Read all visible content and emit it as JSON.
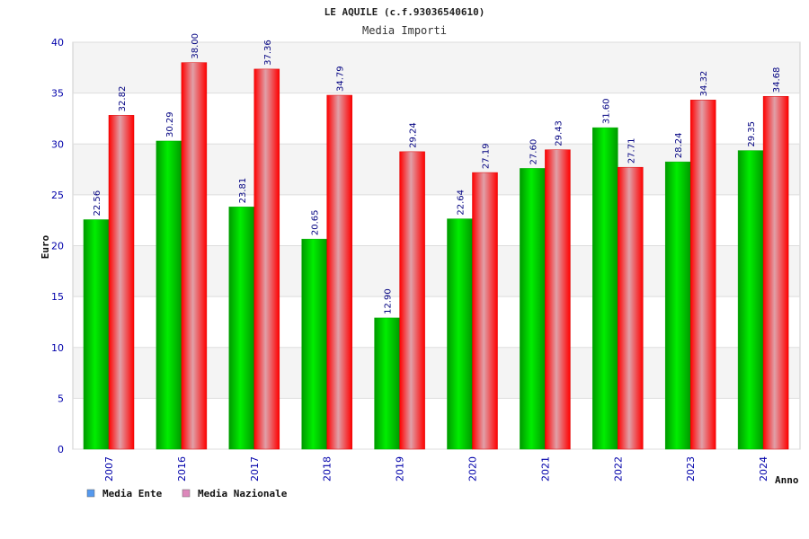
{
  "chart_data": {
    "type": "bar",
    "title": "LE AQUILE (c.f.93036540610)",
    "subtitle": "Media Importi",
    "xlabel": "Anno",
    "ylabel": "Euro",
    "ylim": [
      0,
      40
    ],
    "yticks": [
      "0",
      "5",
      "10",
      "15",
      "20",
      "25",
      "30",
      "35",
      "40"
    ],
    "categories": [
      "2007",
      "2016",
      "2017",
      "2018",
      "2019",
      "2020",
      "2021",
      "2022",
      "2023",
      "2024"
    ],
    "series": [
      {
        "name": "Media Ente",
        "values": [
          22.56,
          30.29,
          23.81,
          20.65,
          12.9,
          22.64,
          27.6,
          31.6,
          28.24,
          29.35
        ],
        "labels": [
          "22.56",
          "30.29",
          "23.81",
          "20.65",
          "12.90",
          "22.64",
          "27.60",
          "31.60",
          "28.24",
          "29.35"
        ],
        "bar_color": "#00cc00",
        "legend_color": "#5599ee"
      },
      {
        "name": "Media Nazionale",
        "values": [
          32.82,
          38.0,
          37.36,
          34.79,
          29.24,
          27.19,
          29.43,
          27.71,
          34.32,
          34.68
        ],
        "labels": [
          "32.82",
          "38.00",
          "37.36",
          "34.79",
          "29.24",
          "27.19",
          "29.43",
          "27.71",
          "34.32",
          "34.68"
        ],
        "bar_color": "#ee0000",
        "legend_color": "#dd88bb"
      }
    ],
    "grid": true,
    "legend_position": "bottom-left"
  }
}
